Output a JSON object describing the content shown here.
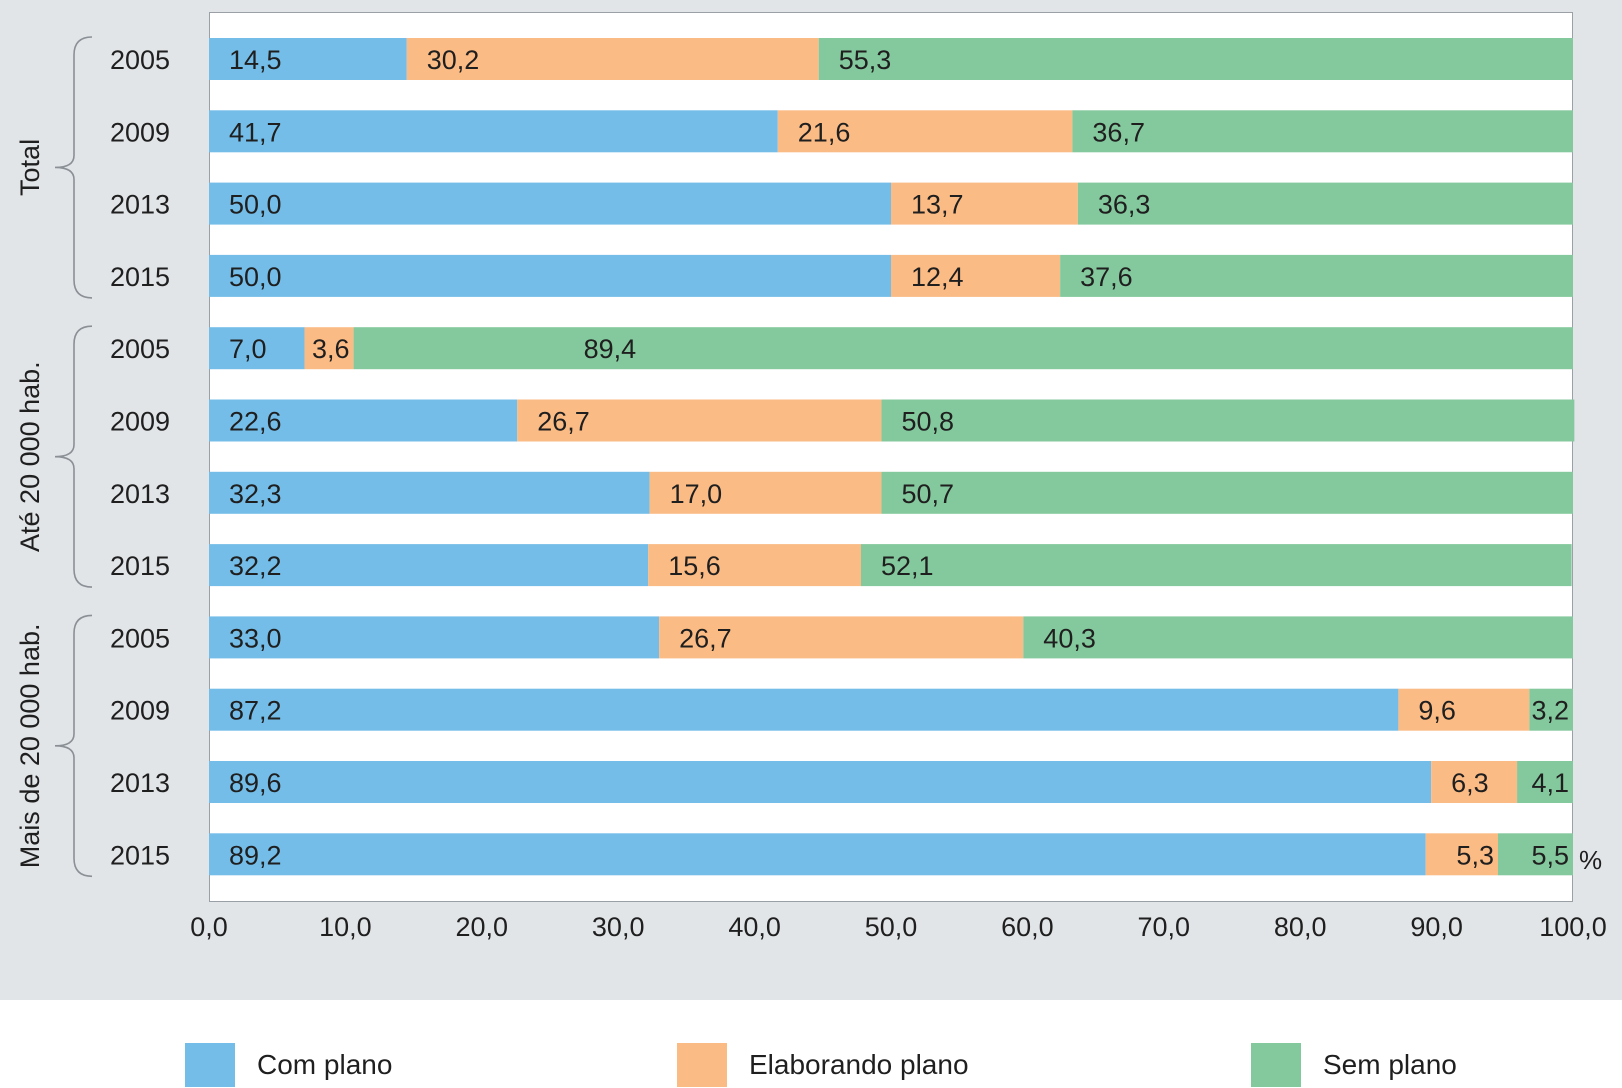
{
  "chart_data": {
    "type": "bar",
    "orientation": "horizontal",
    "stacked": true,
    "groups": [
      {
        "label": "Total",
        "categories": [
          "2005",
          "2009",
          "2013",
          "2015"
        ]
      },
      {
        "label": "Até 20 000 hab.",
        "categories": [
          "2005",
          "2009",
          "2013",
          "2015"
        ]
      },
      {
        "label": "Mais de 20 000 hab.",
        "categories": [
          "2005",
          "2009",
          "2013",
          "2015"
        ]
      }
    ],
    "series": [
      {
        "name": "Com plano",
        "color": "#74bde8",
        "values": [
          14.5,
          41.7,
          50.0,
          50.0,
          7.0,
          22.6,
          32.3,
          32.2,
          33.0,
          87.2,
          89.6,
          89.2
        ],
        "labels": [
          "14,5",
          "41,7",
          "50,0",
          "50,0",
          "7,0",
          "22,6",
          "32,3",
          "32,2",
          "33,0",
          "87,2",
          "89,6",
          "89,2"
        ]
      },
      {
        "name": "Elaborando plano",
        "color": "#fbbb85",
        "values": [
          30.2,
          21.6,
          13.7,
          12.4,
          3.6,
          26.7,
          17.0,
          15.6,
          26.7,
          9.6,
          6.3,
          5.3
        ],
        "labels": [
          "30,2",
          "21,6",
          "13,7",
          "12,4",
          "3,6",
          "26,7",
          "17,0",
          "15,6",
          "26,7",
          "9,6",
          "6,3",
          "5,3"
        ]
      },
      {
        "name": "Sem plano",
        "color": "#84c99d",
        "values": [
          55.3,
          36.7,
          36.3,
          37.6,
          89.4,
          50.8,
          50.7,
          52.1,
          40.3,
          3.2,
          4.1,
          5.5
        ],
        "labels": [
          "55,3",
          "36,7",
          "36,3",
          "37,6",
          "89,4",
          "50,8",
          "50,7",
          "52,1",
          "40,3",
          "3,2",
          "4,1",
          "5,5"
        ]
      }
    ],
    "xlim": [
      0,
      100
    ],
    "xticks": [
      "0,0",
      "10,0",
      "20,0",
      "30,0",
      "40,0",
      "50,0",
      "60,0",
      "70,0",
      "80,0",
      "90,0",
      "100,0"
    ],
    "unit": "%",
    "legend_position": "bottom",
    "grid": false
  }
}
